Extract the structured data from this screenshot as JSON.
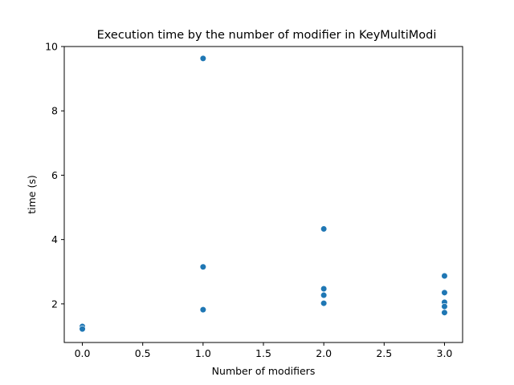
{
  "chart_data": {
    "type": "scatter",
    "title": "Execution time by the number of modifier in KeyMultiModi",
    "xlabel": "Number of modifiers",
    "ylabel": "time (s)",
    "xlim": [
      -0.15,
      3.15
    ],
    "ylim": [
      0.8,
      10.0
    ],
    "xticks": [
      0.0,
      0.5,
      1.0,
      1.5,
      2.0,
      2.5,
      3.0
    ],
    "xtick_labels": [
      "0.0",
      "0.5",
      "1.0",
      "1.5",
      "2.0",
      "2.5",
      "3.0"
    ],
    "yticks": [
      2,
      4,
      6,
      8,
      10
    ],
    "ytick_labels": [
      "2",
      "4",
      "6",
      "8",
      "10"
    ],
    "grid": false,
    "marker_color": "#1f77b4",
    "points": [
      {
        "x": 0,
        "y": 1.3
      },
      {
        "x": 0,
        "y": 1.22
      },
      {
        "x": 1,
        "y": 9.63
      },
      {
        "x": 1,
        "y": 3.15
      },
      {
        "x": 1,
        "y": 1.82
      },
      {
        "x": 2,
        "y": 4.33
      },
      {
        "x": 2,
        "y": 2.47
      },
      {
        "x": 2,
        "y": 2.27
      },
      {
        "x": 2,
        "y": 2.02
      },
      {
        "x": 3,
        "y": 2.87
      },
      {
        "x": 3,
        "y": 2.35
      },
      {
        "x": 3,
        "y": 2.05
      },
      {
        "x": 3,
        "y": 1.92
      },
      {
        "x": 3,
        "y": 1.73
      }
    ]
  }
}
